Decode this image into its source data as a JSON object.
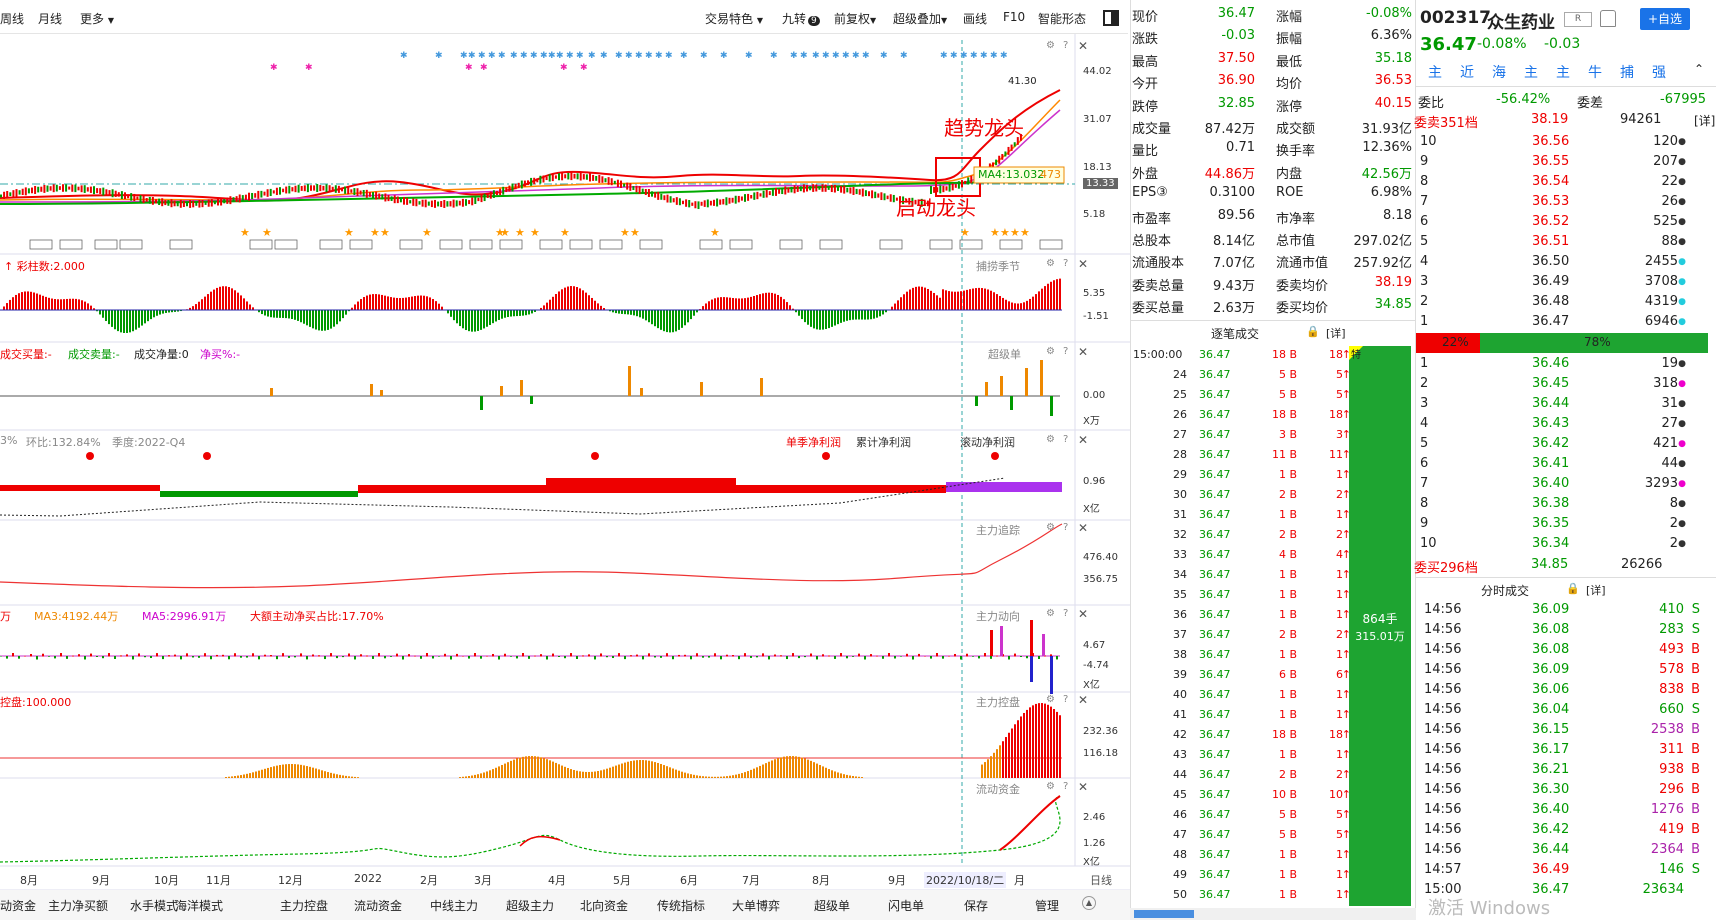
{
  "toolbar": {
    "left_items": [
      "周线",
      "月线",
      "更多"
    ],
    "right_items": [
      "交易特色",
      "九转",
      "前复权",
      "超级叠加",
      "画线",
      "F10",
      "智能形态"
    ],
    "jiuzhuan_badge": "9"
  },
  "main_chart": {
    "y_ticks": [
      "44.02",
      "31.07",
      "18.13",
      "13.33",
      "5.18"
    ],
    "high_label": "41.30",
    "ma_label": "MA4:13.032",
    "ma_value_box": "473",
    "annotation_top": "趋势龙头",
    "annotation_bottom": "启动龙头"
  },
  "panels": [
    {
      "name": "捕捞季节",
      "header": "彩柱数:2.000",
      "y_ticks": [
        "5.35",
        "-1.51"
      ]
    },
    {
      "name": "超级单",
      "header_items": [
        "成交买量:-",
        "成交卖量:-",
        "成交净量:0",
        "净买%:-"
      ],
      "y_ticks": [
        "0.00",
        "X万"
      ]
    },
    {
      "name": "单季净利润",
      "header_items": [
        "3%",
        "环比:132.84%",
        "季度:2022-Q4"
      ],
      "tabs": [
        "单季净利润",
        "累计净利润",
        "滚动净利润"
      ],
      "y_ticks": [
        "0.96",
        "X亿"
      ]
    },
    {
      "name": "主力追踪",
      "y_ticks": [
        "476.40",
        "356.75"
      ]
    },
    {
      "name": "主力动向",
      "header_items": [
        "万",
        "MA3:4192.44万",
        "MA5:2996.91万",
        "大额主动净买占比:17.70%"
      ],
      "y_ticks": [
        "4.67",
        "-4.74",
        "X亿"
      ]
    },
    {
      "name": "主力控盘",
      "header": "控盘:100.000",
      "y_ticks": [
        "232.36",
        "116.18"
      ]
    },
    {
      "name": "流动资金",
      "y_ticks": [
        "2.46",
        "1.26",
        "X亿"
      ]
    }
  ],
  "x_axis": {
    "months": [
      "8月",
      "9月",
      "10月",
      "11月",
      "12月",
      "2022",
      "2月",
      "3月",
      "4月",
      "5月",
      "6月",
      "7月",
      "8月",
      "9月",
      "2022/10/18/二",
      "月"
    ],
    "right_label": "日线"
  },
  "bottom_tabs": [
    "动资金",
    "主力净买额",
    "水手模式",
    "海洋模式",
    "主力控盘",
    "流动资金",
    "中线主力",
    "超级主力",
    "北向资金",
    "传统指标",
    "大单博弈",
    "超级单",
    "闪电单",
    "保存",
    "管理"
  ],
  "quote": {
    "rows": [
      [
        {
          "l": "现价",
          "v": "36.47",
          "c": "green"
        },
        {
          "l": "涨幅",
          "v": "-0.08%",
          "c": "green"
        }
      ],
      [
        {
          "l": "涨跌",
          "v": "-0.03",
          "c": "green"
        },
        {
          "l": "振幅",
          "v": "6.36%",
          "c": "black"
        }
      ],
      [
        {
          "l": "最高",
          "v": "37.50",
          "c": "red"
        },
        {
          "l": "最低",
          "v": "35.18",
          "c": "green"
        }
      ],
      [
        {
          "l": "今开",
          "v": "36.90",
          "c": "red"
        },
        {
          "l": "均价",
          "v": "36.53",
          "c": "red"
        }
      ],
      [
        {
          "l": "跌停",
          "v": "32.85",
          "c": "green"
        },
        {
          "l": "涨停",
          "v": "40.15",
          "c": "red"
        }
      ],
      [
        {
          "l": "成交量",
          "v": "87.42万",
          "c": "black"
        },
        {
          "l": "成交额",
          "v": "31.93亿",
          "c": "black"
        }
      ],
      [
        {
          "l": "量比",
          "v": "0.71",
          "c": "black"
        },
        {
          "l": "换手率",
          "v": "12.36%",
          "c": "black"
        }
      ],
      [
        {
          "l": "外盘",
          "v": "44.86万",
          "c": "red"
        },
        {
          "l": "内盘",
          "v": "42.56万",
          "c": "green"
        }
      ],
      [
        {
          "l": "EPS③",
          "v": "0.3100",
          "c": "black"
        },
        {
          "l": "ROE",
          "v": "6.98%",
          "c": "black"
        }
      ],
      [
        {
          "l": "市盈率",
          "v": "89.56",
          "c": "black"
        },
        {
          "l": "市净率",
          "v": "8.18",
          "c": "black"
        }
      ],
      [
        {
          "l": "总股本",
          "v": "8.14亿",
          "c": "black"
        },
        {
          "l": "总市值",
          "v": "297.02亿",
          "c": "black"
        }
      ],
      [
        {
          "l": "流通股本",
          "v": "7.07亿",
          "c": "black"
        },
        {
          "l": "流通市值",
          "v": "257.92亿",
          "c": "black"
        }
      ],
      [
        {
          "l": "委卖总量",
          "v": "9.43万",
          "c": "black"
        },
        {
          "l": "委卖均价",
          "v": "38.19",
          "c": "red"
        }
      ],
      [
        {
          "l": "委买总量",
          "v": "2.63万",
          "c": "black"
        },
        {
          "l": "委买均价",
          "v": "34.85",
          "c": "green"
        }
      ]
    ]
  },
  "ticks": {
    "title": "逐笔成交",
    "detail": "[详]",
    "special_badge": "特",
    "total_volume": "864手",
    "total_amount": "315.01万",
    "rows": [
      [
        "15:00:00",
        "36.47",
        "18 B",
        "18"
      ],
      [
        "24",
        "36.47",
        "5 B",
        "5"
      ],
      [
        "25",
        "36.47",
        "5 B",
        "5"
      ],
      [
        "26",
        "36.47",
        "18 B",
        "18"
      ],
      [
        "27",
        "36.47",
        "3 B",
        "3"
      ],
      [
        "28",
        "36.47",
        "11 B",
        "11"
      ],
      [
        "29",
        "36.47",
        "1 B",
        "1"
      ],
      [
        "30",
        "36.47",
        "2 B",
        "2"
      ],
      [
        "31",
        "36.47",
        "1 B",
        "1"
      ],
      [
        "32",
        "36.47",
        "2 B",
        "2"
      ],
      [
        "33",
        "36.47",
        "4 B",
        "4"
      ],
      [
        "34",
        "36.47",
        "1 B",
        "1"
      ],
      [
        "35",
        "36.47",
        "1 B",
        "1"
      ],
      [
        "36",
        "36.47",
        "1 B",
        "1"
      ],
      [
        "37",
        "36.47",
        "2 B",
        "2"
      ],
      [
        "38",
        "36.47",
        "1 B",
        "1"
      ],
      [
        "39",
        "36.47",
        "6 B",
        "6"
      ],
      [
        "40",
        "36.47",
        "1 B",
        "1"
      ],
      [
        "41",
        "36.47",
        "1 B",
        "1"
      ],
      [
        "42",
        "36.47",
        "18 B",
        "18"
      ],
      [
        "43",
        "36.47",
        "1 B",
        "1"
      ],
      [
        "44",
        "36.47",
        "2 B",
        "2"
      ],
      [
        "45",
        "36.47",
        "10 B",
        "10"
      ],
      [
        "46",
        "36.47",
        "5 B",
        "5"
      ],
      [
        "47",
        "36.47",
        "5 B",
        "5"
      ],
      [
        "48",
        "36.47",
        "1 B",
        "1"
      ],
      [
        "49",
        "36.47",
        "1 B",
        "1"
      ],
      [
        "50",
        "36.47",
        "1 B",
        "1"
      ]
    ]
  },
  "stock": {
    "code": "002317",
    "name": "众生药业",
    "badge": "R",
    "add_button": "+自选",
    "price": "36.47",
    "change_pct": "-0.08%",
    "change": "-0.03",
    "tabs": [
      "主",
      "近",
      "海",
      "主",
      "主",
      "牛",
      "捕",
      "强"
    ]
  },
  "orderbook": {
    "weibi_label": "委比",
    "weibi": "-56.42%",
    "weicha_label": "委差",
    "weicha": "-67995",
    "sell_header": "委卖351档",
    "sell_header_price": "38.19",
    "sell_header_vol": "94261",
    "detail": "[详]",
    "sells": [
      [
        "10",
        "36.56",
        "120"
      ],
      [
        "9",
        "36.55",
        "207"
      ],
      [
        "8",
        "36.54",
        "22"
      ],
      [
        "7",
        "36.53",
        "26"
      ],
      [
        "6",
        "36.52",
        "525"
      ],
      [
        "5",
        "36.51",
        "88"
      ],
      [
        "4",
        "36.50",
        "2455"
      ],
      [
        "3",
        "36.49",
        "3708"
      ],
      [
        "2",
        "36.48",
        "4319"
      ],
      [
        "1",
        "36.47",
        "6946"
      ]
    ],
    "buy_pct": "22%",
    "sell_pct": "78%",
    "buy_fraction": 0.22,
    "buys": [
      [
        "1",
        "36.46",
        "19"
      ],
      [
        "2",
        "36.45",
        "318"
      ],
      [
        "3",
        "36.44",
        "31"
      ],
      [
        "4",
        "36.43",
        "27"
      ],
      [
        "5",
        "36.42",
        "421"
      ],
      [
        "6",
        "36.41",
        "44"
      ],
      [
        "7",
        "36.40",
        "3293"
      ],
      [
        "8",
        "36.38",
        "8"
      ],
      [
        "9",
        "36.35",
        "2"
      ],
      [
        "10",
        "36.34",
        "2"
      ]
    ],
    "buy_footer": "委买296档",
    "buy_footer_price": "34.85",
    "buy_footer_vol": "26266"
  },
  "minute_trades": {
    "title": "分时成交",
    "detail": "[详]",
    "rows": [
      [
        "14:56",
        "36.09",
        "410",
        "S",
        "green"
      ],
      [
        "14:56",
        "36.08",
        "283",
        "S",
        "green"
      ],
      [
        "14:56",
        "36.08",
        "493",
        "B",
        "red"
      ],
      [
        "14:56",
        "36.09",
        "578",
        "B",
        "red"
      ],
      [
        "14:56",
        "36.06",
        "838",
        "B",
        "red"
      ],
      [
        "14:56",
        "36.04",
        "660",
        "S",
        "green"
      ],
      [
        "14:56",
        "36.15",
        "2538",
        "B",
        "purple"
      ],
      [
        "14:56",
        "36.17",
        "311",
        "B",
        "red"
      ],
      [
        "14:56",
        "36.21",
        "938",
        "B",
        "red"
      ],
      [
        "14:56",
        "36.30",
        "296",
        "B",
        "red"
      ],
      [
        "14:56",
        "36.40",
        "1276",
        "B",
        "purple"
      ],
      [
        "14:56",
        "36.42",
        "419",
        "B",
        "red"
      ],
      [
        "14:56",
        "36.44",
        "2364",
        "B",
        "purple"
      ],
      [
        "14:57",
        "36.49",
        "146",
        "S",
        "green"
      ],
      [
        "15:00",
        "36.47",
        "23634",
        "",
        " red"
      ]
    ]
  },
  "watermark": "激活 Windows"
}
